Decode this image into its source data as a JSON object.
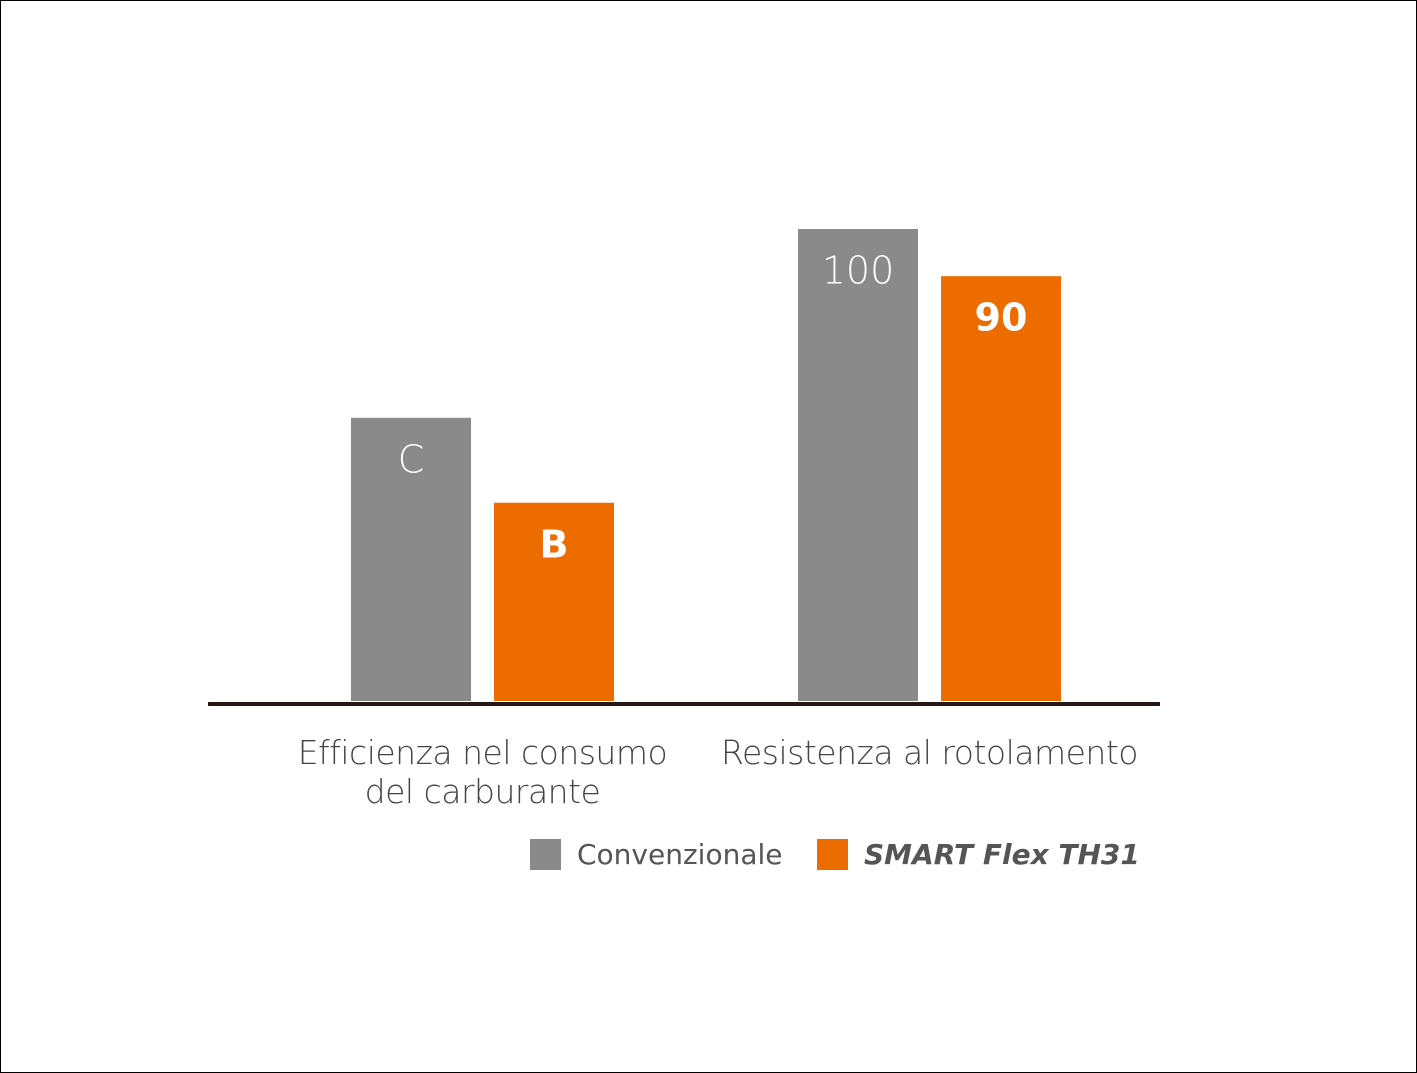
{
  "chart_data": {
    "type": "bar",
    "categories": [
      "Efficienza nel consumo del carburante",
      "Resistenza al rotolamento"
    ],
    "series": [
      {
        "name": "Convenzionale",
        "color": "#8a8a8a",
        "values": [
          60,
          100
        ],
        "value_labels": [
          "C",
          "100"
        ]
      },
      {
        "name": "SMART Flex TH31",
        "color": "#ec6c00",
        "values": [
          42,
          90
        ],
        "value_labels": [
          "B",
          "90"
        ]
      }
    ]
  }
}
